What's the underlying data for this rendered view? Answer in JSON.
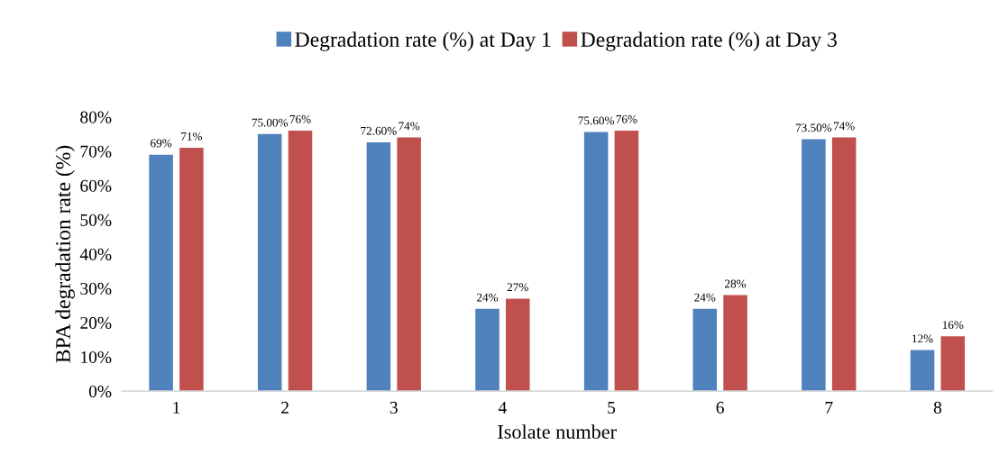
{
  "chart_data": {
    "type": "bar",
    "xlabel": "Isolate number",
    "ylabel": "BPA degradation rate (%)",
    "categories": [
      "1",
      "2",
      "3",
      "4",
      "5",
      "6",
      "7",
      "8"
    ],
    "series": [
      {
        "name": "Degradation rate (%) at Day 1",
        "color": "#4f81bd",
        "values": [
          69,
          75.0,
          72.6,
          24,
          75.6,
          24,
          73.5,
          12
        ],
        "value_labels": [
          "69%",
          "75.00%",
          "72.60%",
          "24%",
          "75.60%",
          "24%",
          "73.50%",
          "12%"
        ]
      },
      {
        "name": "Degradation rate (%) at Day 3",
        "color": "#c0504d",
        "values": [
          71,
          76,
          74,
          27,
          76,
          28,
          74,
          16
        ],
        "value_labels": [
          "71%",
          "76%",
          "74%",
          "27%",
          "76%",
          "28%",
          "74%",
          "16%"
        ]
      }
    ],
    "ylim": [
      0,
      80
    ],
    "yticks": [
      {
        "value": 0,
        "label": "0%"
      },
      {
        "value": 10,
        "label": "10%"
      },
      {
        "value": 20,
        "label": "20%"
      },
      {
        "value": 30,
        "label": "30%"
      },
      {
        "value": 40,
        "label": "40%"
      },
      {
        "value": 50,
        "label": "50%"
      },
      {
        "value": 60,
        "label": "60%"
      },
      {
        "value": 70,
        "label": "70%"
      },
      {
        "value": 80,
        "label": "80%"
      }
    ],
    "grid": false,
    "legend": "top"
  }
}
